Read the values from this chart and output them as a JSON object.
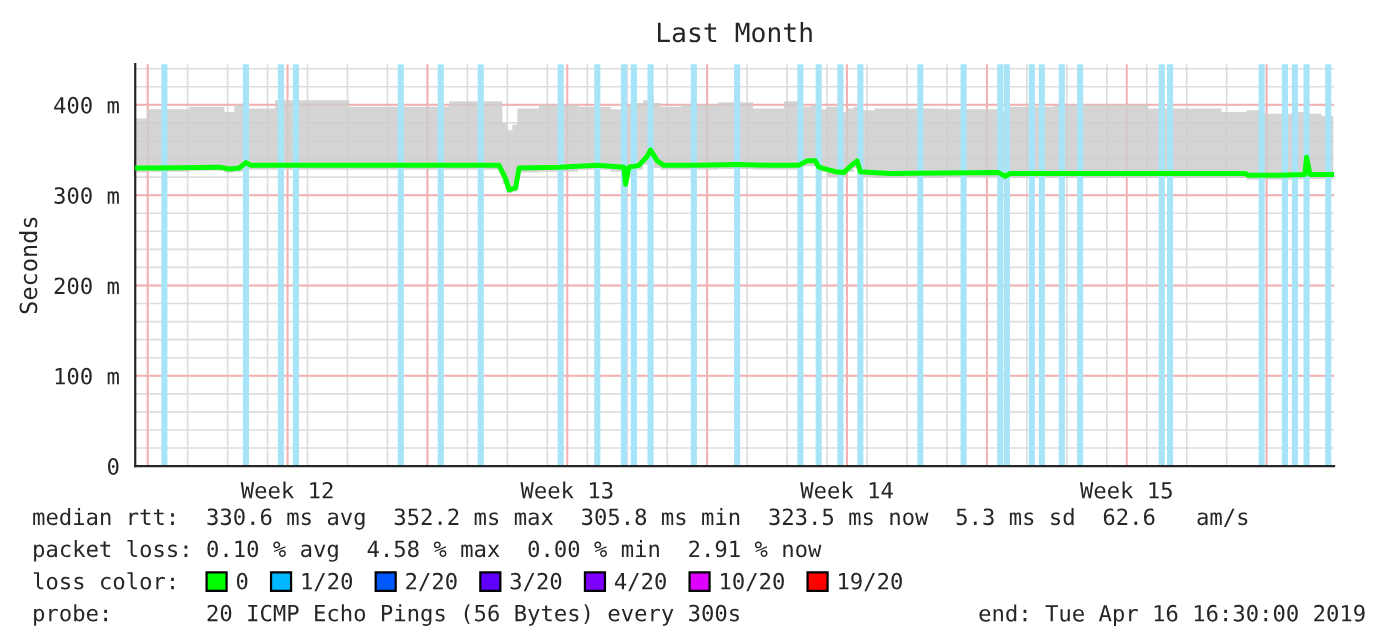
{
  "chart_data": {
    "type": "line",
    "title": "Last Month",
    "ylabel": "Seconds",
    "x": [
      "2019-03-17T16:30",
      "2019-03-18T07:00",
      "2019-03-19T19:00",
      "2019-03-20T01:00",
      "2019-03-20T07:00",
      "2019-03-20T11:00",
      "2019-03-20T14:00",
      "2019-03-21T19:00",
      "2019-03-24T07:00",
      "2019-03-26T19:00",
      "2019-03-26T23:00",
      "2019-03-27T01:00",
      "2019-03-27T05:00",
      "2019-03-27T07:00",
      "2019-03-28T07:00",
      "2019-03-29T06:00",
      "2019-03-29T22:00",
      "2019-03-29T23:00",
      "2019-03-30T01:00",
      "2019-03-30T07:00",
      "2019-03-30T12:00",
      "2019-03-30T14:00",
      "2019-03-30T18:00",
      "2019-03-30T22:00",
      "2019-03-31T19:00",
      "2019-04-01T18:00",
      "2019-04-02T13:00",
      "2019-04-03T07:00",
      "2019-04-03T12:00",
      "2019-04-03T17:00",
      "2019-04-03T19:00",
      "2019-04-04T05:00",
      "2019-04-04T10:00",
      "2019-04-04T14:00",
      "2019-04-04T18:00",
      "2019-04-04T20:00",
      "2019-04-05T13:00",
      "2019-04-08T07:00",
      "2019-04-08T11:00",
      "2019-04-08T14:00",
      "2019-04-10T19:00",
      "2019-04-13T07:00",
      "2019-04-14T11:00",
      "2019-04-14T13:00",
      "2019-04-15T07:00",
      "2019-04-15T23:00",
      "2019-04-16T00:00",
      "2019-04-16T02:00",
      "2019-04-16T16:00"
    ],
    "series": [
      {
        "name": "0",
        "color": "#00ff00",
        "values": [
          330,
          330,
          331,
          329,
          330,
          336,
          333,
          333,
          333,
          333,
          318,
          306,
          308,
          330,
          331,
          333,
          331,
          312,
          331,
          333,
          343,
          350,
          338,
          333,
          333,
          334,
          333,
          333,
          338,
          338,
          331,
          326,
          325,
          332,
          338,
          326,
          324,
          325,
          321,
          324,
          324,
          324,
          324,
          322,
          322,
          323,
          342,
          323,
          323
        ],
        "lower": [
          325,
          326,
          327,
          325,
          326,
          328,
          328,
          328,
          328,
          328,
          312,
          302,
          304,
          325,
          326,
          328,
          326,
          308,
          326,
          328,
          334,
          338,
          330,
          328,
          328,
          329,
          328,
          328,
          332,
          332,
          326,
          320,
          319,
          326,
          330,
          320,
          319,
          320,
          316,
          319,
          319,
          319,
          319,
          317,
          317,
          318,
          318,
          318,
          318
        ],
        "upper": [
          385,
          395,
          398,
          392,
          400,
          402,
          396,
          405,
          398,
          404,
          380,
          372,
          378,
          396,
          400,
          398,
          395,
          385,
          400,
          402,
          405,
          410,
          402,
          398,
          400,
          403,
          396,
          404,
          398,
          400,
          395,
          398,
          392,
          396,
          398,
          394,
          396,
          395,
          392,
          398,
          400,
          396,
          392,
          394,
          390,
          392,
          395,
          390,
          388
        ]
      },
      {
        "name": "1/20",
        "color": "#00b8ff",
        "values": [
          null,
          null,
          null,
          null,
          null,
          null,
          null,
          null,
          null,
          null,
          null,
          null,
          null,
          null,
          null,
          null,
          null,
          null,
          null,
          null,
          null,
          null,
          null,
          null,
          null,
          null,
          null,
          null,
          null,
          null,
          null,
          null,
          null,
          null,
          null,
          null,
          null,
          null,
          null,
          null,
          null,
          null,
          null,
          null,
          null,
          null,
          null,
          null,
          null
        ]
      },
      {
        "name": "2/20",
        "color": "#0059ff",
        "values": [
          null,
          null,
          null,
          null,
          null,
          null,
          null,
          null,
          null,
          null,
          null,
          null,
          null,
          null,
          null,
          null,
          null,
          null,
          null,
          null,
          null,
          null,
          null,
          null,
          null,
          null,
          null,
          null,
          null,
          null,
          null,
          null,
          null,
          null,
          null,
          null,
          null,
          null,
          null,
          null,
          null,
          null,
          null,
          null,
          null,
          null,
          null,
          null,
          null
        ]
      },
      {
        "name": "3/20",
        "color": "#5e00ff",
        "values": [
          null,
          null,
          null,
          null,
          null,
          null,
          null,
          null,
          null,
          null,
          null,
          null,
          null,
          null,
          null,
          null,
          null,
          null,
          null,
          null,
          null,
          null,
          null,
          null,
          null,
          null,
          null,
          null,
          null,
          null,
          null,
          null,
          null,
          null,
          null,
          null,
          null,
          null,
          null,
          null,
          null,
          null,
          null,
          null,
          null,
          null,
          null,
          null,
          null
        ]
      },
      {
        "name": "4/20",
        "color": "#7e00ff",
        "values": [
          null,
          null,
          null,
          null,
          null,
          null,
          null,
          null,
          null,
          null,
          null,
          null,
          null,
          null,
          null,
          null,
          null,
          null,
          null,
          null,
          null,
          null,
          null,
          null,
          null,
          null,
          null,
          null,
          null,
          null,
          null,
          null,
          null,
          null,
          null,
          null,
          null,
          null,
          null,
          null,
          null,
          null,
          null,
          null,
          null,
          null,
          null,
          null,
          null
        ]
      },
      {
        "name": "10/20",
        "color": "#dd00ff",
        "values": [
          null,
          null,
          null,
          null,
          null,
          null,
          null,
          null,
          null,
          null,
          null,
          null,
          null,
          null,
          null,
          null,
          null,
          null,
          null,
          null,
          null,
          null,
          null,
          null,
          null,
          null,
          null,
          null,
          null,
          null,
          null,
          null,
          null,
          null,
          null,
          null,
          null,
          null,
          null,
          null,
          null,
          null,
          null,
          null,
          null,
          null,
          null,
          null,
          null
        ]
      },
      {
        "name": "19/20",
        "color": "#ff0000",
        "values": [
          null,
          null,
          null,
          null,
          null,
          null,
          null,
          null,
          null,
          null,
          null,
          null,
          null,
          null,
          null,
          null,
          null,
          null,
          null,
          null,
          null,
          null,
          null,
          null,
          null,
          null,
          null,
          null,
          null,
          null,
          null,
          null,
          null,
          null,
          null,
          null,
          null,
          null,
          null,
          null,
          null,
          null,
          null,
          null,
          null,
          null,
          null,
          null,
          null
        ]
      }
    ],
    "xlim": [
      "2019-03-17T16:30",
      "2019-04-16T16:30"
    ],
    "xticks": [
      {
        "value": "2019-03-18",
        "label": null
      },
      {
        "value": "2019-03-21T12:00",
        "label": "Week 12"
      },
      {
        "value": "2019-03-25",
        "label": null
      },
      {
        "value": "2019-03-28T12:00",
        "label": "Week 13"
      },
      {
        "value": "2019-04-01",
        "label": null
      },
      {
        "value": "2019-04-04T12:00",
        "label": "Week 14"
      },
      {
        "value": "2019-04-08",
        "label": null
      },
      {
        "value": "2019-04-11T12:00",
        "label": "Week 15"
      },
      {
        "value": "2019-04-15",
        "label": null
      }
    ],
    "ylim": [
      0,
      445
    ],
    "yticks": [
      0,
      {
        "value": 100,
        "label": "100 m"
      },
      {
        "value": 200,
        "label": "200 m"
      },
      {
        "value": 300,
        "label": "300 m"
      },
      {
        "value": 400,
        "label": "400 m"
      }
    ],
    "grid": true,
    "legend": "bottom",
    "marker": "none",
    "line_style": "solid",
    "ref_lines": [
      {
        "axis": "x",
        "value": "2019-03-18T10:00",
        "color": "#a8e4f8"
      },
      {
        "axis": "x",
        "value": "2019-03-20T11:00",
        "color": "#a8e4f8"
      },
      {
        "axis": "x",
        "value": "2019-03-21T08:00",
        "color": "#a8e4f8"
      },
      {
        "axis": "x",
        "value": "2019-03-21T17:00",
        "color": "#a8e4f8"
      },
      {
        "axis": "x",
        "value": "2019-03-24T08:00",
        "color": "#a8e4f8"
      },
      {
        "axis": "x",
        "value": "2019-03-25T08:00",
        "color": "#a8e4f8"
      },
      {
        "axis": "x",
        "value": "2019-03-26T08:00",
        "color": "#a8e4f8"
      },
      {
        "axis": "x",
        "value": "2019-03-28T08:00",
        "color": "#a8e4f8"
      },
      {
        "axis": "x",
        "value": "2019-03-29T06:00",
        "color": "#a8e4f8"
      },
      {
        "axis": "x",
        "value": "2019-03-29T22:00",
        "color": "#a8e4f8"
      },
      {
        "axis": "x",
        "value": "2019-03-30T04:00",
        "color": "#a8e4f8"
      },
      {
        "axis": "x",
        "value": "2019-03-30T14:00",
        "color": "#a8e4f8"
      },
      {
        "axis": "x",
        "value": "2019-03-31T16:00",
        "color": "#a8e4f8"
      },
      {
        "axis": "x",
        "value": "2019-04-01T18:00",
        "color": "#a8e4f8"
      },
      {
        "axis": "x",
        "value": "2019-04-03T08:00",
        "color": "#a8e4f8"
      },
      {
        "axis": "x",
        "value": "2019-04-03T19:00",
        "color": "#a8e4f8"
      },
      {
        "axis": "x",
        "value": "2019-04-04T08:00",
        "color": "#a8e4f8"
      },
      {
        "axis": "x",
        "value": "2019-04-04T20:00",
        "color": "#a8e4f8"
      },
      {
        "axis": "x",
        "value": "2019-04-06T08:00",
        "color": "#a8e4f8"
      },
      {
        "axis": "x",
        "value": "2019-04-07T10:00",
        "color": "#a8e4f8"
      },
      {
        "axis": "x",
        "value": "2019-04-08T08:00",
        "color": "#a8e4f8"
      },
      {
        "axis": "x",
        "value": "2019-04-08T12:00",
        "color": "#a8e4f8"
      },
      {
        "axis": "x",
        "value": "2019-04-09T03:00",
        "color": "#a8e4f8"
      },
      {
        "axis": "x",
        "value": "2019-04-09T09:00",
        "color": "#a8e4f8"
      },
      {
        "axis": "x",
        "value": "2019-04-09T21:00",
        "color": "#a8e4f8"
      },
      {
        "axis": "x",
        "value": "2019-04-10T08:00",
        "color": "#a8e4f8"
      },
      {
        "axis": "x",
        "value": "2019-04-12T09:00",
        "color": "#a8e4f8"
      },
      {
        "axis": "x",
        "value": "2019-04-12T14:00",
        "color": "#a8e4f8"
      },
      {
        "axis": "x",
        "value": "2019-04-14T21:00",
        "color": "#a8e4f8"
      },
      {
        "axis": "x",
        "value": "2019-04-15T11:00",
        "color": "#a8e4f8"
      },
      {
        "axis": "x",
        "value": "2019-04-15T17:00",
        "color": "#a8e4f8"
      },
      {
        "axis": "x",
        "value": "2019-04-16T00:00",
        "color": "#a8e4f8"
      },
      {
        "axis": "x",
        "value": "2019-04-16T13:00",
        "color": "#a8e4f8"
      }
    ],
    "annotations": [
      "median rtt:  330.6 ms avg  352.2 ms max  305.8 ms min  323.5 ms now  5.3 ms sd  62.6   am/s",
      "packet loss: 0.10 % avg  4.58 % max  0.00 % min  2.91 % now",
      "loss color:",
      "probe:       20 ICMP Echo Pings (56 Bytes) every 300s",
      "end: Tue Apr 16 16:30:00 2019"
    ]
  }
}
